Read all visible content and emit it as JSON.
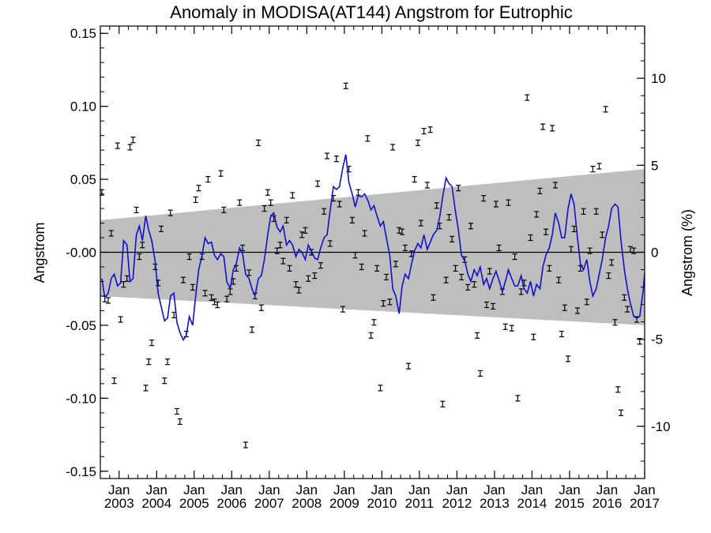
{
  "chart_data": {
    "type": "line",
    "title": "Anomaly in MODISA(AT144) Angstrom for Eutrophic",
    "ylabel": "Angstrom",
    "y2label": "Angstrom (%)",
    "xlim": [
      2002.5,
      2017.0
    ],
    "ylim": [
      -0.155,
      0.155
    ],
    "y2lim": [
      -13.0,
      13.0
    ],
    "yticks": [
      {
        "value": 0.15,
        "label": "0.15"
      },
      {
        "value": 0.1,
        "label": "0.10"
      },
      {
        "value": 0.05,
        "label": "0.05"
      },
      {
        "value": 0.0,
        "label": "-0.00"
      },
      {
        "value": -0.05,
        "label": "-0.05"
      },
      {
        "value": -0.1,
        "label": "-0.10"
      },
      {
        "value": -0.15,
        "label": "-0.15"
      }
    ],
    "y2ticks": [
      {
        "value": 10,
        "label": "10"
      },
      {
        "value": 5,
        "label": "5"
      },
      {
        "value": 0,
        "label": "0"
      },
      {
        "value": -5,
        "label": "-5"
      },
      {
        "value": -10,
        "label": "-10"
      }
    ],
    "xticks": [
      {
        "value": 2003,
        "top": "Jan",
        "bottom": "2003"
      },
      {
        "value": 2004,
        "top": "Jan",
        "bottom": "2004"
      },
      {
        "value": 2005,
        "top": "Jan",
        "bottom": "2005"
      },
      {
        "value": 2006,
        "top": "Jan",
        "bottom": "2006"
      },
      {
        "value": 2007,
        "top": "Jan",
        "bottom": "2007"
      },
      {
        "value": 2008,
        "top": "Jan",
        "bottom": "2008"
      },
      {
        "value": 2009,
        "top": "Jan",
        "bottom": "2009"
      },
      {
        "value": 2010,
        "top": "Jan",
        "bottom": "2010"
      },
      {
        "value": 2011,
        "top": "Jan",
        "bottom": "2011"
      },
      {
        "value": 2012,
        "top": "Jan",
        "bottom": "2012"
      },
      {
        "value": 2013,
        "top": "Jan",
        "bottom": "2013"
      },
      {
        "value": 2014,
        "top": "Jan",
        "bottom": "2014"
      },
      {
        "value": 2015,
        "top": "Jan",
        "bottom": "2015"
      },
      {
        "value": 2016,
        "top": "Jan",
        "bottom": "2016"
      },
      {
        "value": 2017,
        "top": "Jan",
        "bottom": "2017"
      }
    ],
    "band": {
      "start": [
        2002.5,
        0.022,
        -0.03
      ],
      "end": [
        2017.0,
        0.057,
        -0.05
      ],
      "color": "#bebebe"
    },
    "zero_line": 0.0,
    "smoothed_color": "#1010d0",
    "smoothed": [
      [
        2002.54,
        -0.018
      ],
      [
        2002.62,
        -0.031
      ],
      [
        2002.71,
        -0.028
      ],
      [
        2002.79,
        -0.018
      ],
      [
        2002.87,
        -0.015
      ],
      [
        2002.96,
        -0.023
      ],
      [
        2003.04,
        -0.021
      ],
      [
        2003.12,
        0.008
      ],
      [
        2003.21,
        0.005
      ],
      [
        2003.29,
        -0.02
      ],
      [
        2003.37,
        -0.018
      ],
      [
        2003.46,
        0.012
      ],
      [
        2003.54,
        0.018
      ],
      [
        2003.62,
        0.008
      ],
      [
        2003.71,
        0.025
      ],
      [
        2003.79,
        0.015
      ],
      [
        2003.87,
        0.008
      ],
      [
        2003.96,
        -0.006
      ],
      [
        2004.04,
        -0.028
      ],
      [
        2004.12,
        -0.037
      ],
      [
        2004.21,
        -0.047
      ],
      [
        2004.29,
        -0.045
      ],
      [
        2004.37,
        -0.03
      ],
      [
        2004.46,
        -0.028
      ],
      [
        2004.54,
        -0.048
      ],
      [
        2004.62,
        -0.055
      ],
      [
        2004.71,
        -0.06
      ],
      [
        2004.79,
        -0.057
      ],
      [
        2004.87,
        -0.044
      ],
      [
        2004.96,
        -0.05
      ],
      [
        2005.04,
        -0.03
      ],
      [
        2005.12,
        -0.012
      ],
      [
        2005.21,
        -0.002
      ],
      [
        2005.29,
        0.01
      ],
      [
        2005.37,
        0.006
      ],
      [
        2005.46,
        0.007
      ],
      [
        2005.54,
        -0.002
      ],
      [
        2005.62,
        -0.005
      ],
      [
        2005.71,
        -0.001
      ],
      [
        2005.79,
        -0.003
      ],
      [
        2005.87,
        -0.02
      ],
      [
        2005.96,
        -0.025
      ],
      [
        2006.04,
        -0.012
      ],
      [
        2006.12,
        -0.008
      ],
      [
        2006.21,
        0.003
      ],
      [
        2006.29,
        -0.001
      ],
      [
        2006.37,
        -0.015
      ],
      [
        2006.46,
        -0.018
      ],
      [
        2006.54,
        -0.025
      ],
      [
        2006.62,
        -0.03
      ],
      [
        2006.71,
        -0.018
      ],
      [
        2006.79,
        -0.016
      ],
      [
        2006.87,
        -0.005
      ],
      [
        2006.96,
        0.012
      ],
      [
        2007.04,
        0.025
      ],
      [
        2007.12,
        0.027
      ],
      [
        2007.21,
        0.017
      ],
      [
        2007.29,
        0.014
      ],
      [
        2007.37,
        0.018
      ],
      [
        2007.46,
        0.005
      ],
      [
        2007.54,
        0.008
      ],
      [
        2007.62,
        0.005
      ],
      [
        2007.71,
        -0.003
      ],
      [
        2007.79,
        0.002
      ],
      [
        2007.87,
        0.0
      ],
      [
        2007.96,
        -0.005
      ],
      [
        2008.04,
        0.005
      ],
      [
        2008.12,
        0.001
      ],
      [
        2008.21,
        -0.004
      ],
      [
        2008.29,
        -0.005
      ],
      [
        2008.37,
        0.003
      ],
      [
        2008.46,
        0.01
      ],
      [
        2008.54,
        0.012
      ],
      [
        2008.62,
        0.028
      ],
      [
        2008.71,
        0.045
      ],
      [
        2008.79,
        0.043
      ],
      [
        2008.87,
        0.045
      ],
      [
        2008.96,
        0.058
      ],
      [
        2009.04,
        0.067
      ],
      [
        2009.12,
        0.048
      ],
      [
        2009.21,
        0.04
      ],
      [
        2009.29,
        0.031
      ],
      [
        2009.37,
        0.039
      ],
      [
        2009.46,
        0.038
      ],
      [
        2009.54,
        0.04
      ],
      [
        2009.62,
        0.036
      ],
      [
        2009.71,
        0.029
      ],
      [
        2009.79,
        0.032
      ],
      [
        2009.87,
        0.025
      ],
      [
        2009.96,
        0.018
      ],
      [
        2010.04,
        0.021
      ],
      [
        2010.12,
        0.01
      ],
      [
        2010.21,
        -0.002
      ],
      [
        2010.29,
        -0.025
      ],
      [
        2010.37,
        -0.03
      ],
      [
        2010.46,
        -0.042
      ],
      [
        2010.54,
        -0.023
      ],
      [
        2010.62,
        -0.015
      ],
      [
        2010.71,
        -0.018
      ],
      [
        2010.79,
        -0.008
      ],
      [
        2010.87,
        0.001
      ],
      [
        2010.96,
        0.006
      ],
      [
        2011.04,
        0.003
      ],
      [
        2011.12,
        0.012
      ],
      [
        2011.21,
        0.002
      ],
      [
        2011.29,
        0.007
      ],
      [
        2011.37,
        0.012
      ],
      [
        2011.46,
        0.015
      ],
      [
        2011.54,
        0.024
      ],
      [
        2011.62,
        0.038
      ],
      [
        2011.71,
        0.051
      ],
      [
        2011.79,
        0.047
      ],
      [
        2011.87,
        0.045
      ],
      [
        2011.96,
        0.028
      ],
      [
        2012.04,
        0.015
      ],
      [
        2012.12,
        -0.002
      ],
      [
        2012.21,
        -0.006
      ],
      [
        2012.29,
        -0.015
      ],
      [
        2012.37,
        -0.02
      ],
      [
        2012.46,
        -0.012
      ],
      [
        2012.54,
        -0.016
      ],
      [
        2012.62,
        -0.01
      ],
      [
        2012.71,
        -0.022
      ],
      [
        2012.79,
        -0.018
      ],
      [
        2012.87,
        -0.025
      ],
      [
        2012.96,
        -0.018
      ],
      [
        2013.04,
        -0.013
      ],
      [
        2013.12,
        -0.019
      ],
      [
        2013.21,
        -0.027
      ],
      [
        2013.29,
        -0.02
      ],
      [
        2013.37,
        -0.012
      ],
      [
        2013.46,
        -0.018
      ],
      [
        2013.54,
        -0.023
      ],
      [
        2013.62,
        -0.023
      ],
      [
        2013.71,
        -0.016
      ],
      [
        2013.79,
        -0.025
      ],
      [
        2013.87,
        -0.028
      ],
      [
        2013.96,
        -0.02
      ],
      [
        2014.04,
        -0.03
      ],
      [
        2014.12,
        -0.022
      ],
      [
        2014.21,
        -0.025
      ],
      [
        2014.29,
        -0.01
      ],
      [
        2014.37,
        -0.002
      ],
      [
        2014.46,
        0.003
      ],
      [
        2014.54,
        0.012
      ],
      [
        2014.62,
        0.027
      ],
      [
        2014.71,
        0.02
      ],
      [
        2014.79,
        0.01
      ],
      [
        2014.87,
        0.01
      ],
      [
        2014.96,
        0.03
      ],
      [
        2015.04,
        0.04
      ],
      [
        2015.12,
        0.033
      ],
      [
        2015.21,
        0.01
      ],
      [
        2015.29,
        -0.008
      ],
      [
        2015.37,
        -0.012
      ],
      [
        2015.46,
        -0.005
      ],
      [
        2015.54,
        -0.02
      ],
      [
        2015.62,
        -0.03
      ],
      [
        2015.71,
        -0.025
      ],
      [
        2015.79,
        -0.015
      ],
      [
        2015.87,
        -0.005
      ],
      [
        2015.96,
        0.01
      ],
      [
        2016.04,
        0.018
      ],
      [
        2016.12,
        0.03
      ],
      [
        2016.21,
        0.033
      ],
      [
        2016.29,
        0.031
      ],
      [
        2016.37,
        0.008
      ],
      [
        2016.46,
        -0.012
      ],
      [
        2016.54,
        -0.025
      ],
      [
        2016.62,
        -0.035
      ],
      [
        2016.71,
        -0.044
      ],
      [
        2016.79,
        -0.045
      ],
      [
        2016.87,
        -0.044
      ],
      [
        2016.96,
        -0.026
      ],
      [
        2017.0,
        -0.015
      ]
    ],
    "monthly_points": [
      [
        2002.54,
        0.041
      ],
      [
        2002.62,
        -0.032
      ],
      [
        2002.71,
        -0.033
      ],
      [
        2002.79,
        0.013
      ],
      [
        2002.87,
        -0.088
      ],
      [
        2002.96,
        0.073
      ],
      [
        2003.04,
        -0.046
      ],
      [
        2003.12,
        -0.022
      ],
      [
        2003.21,
        -0.018
      ],
      [
        2003.29,
        0.072
      ],
      [
        2003.37,
        0.077
      ],
      [
        2003.46,
        0.029
      ],
      [
        2003.54,
        -0.003
      ],
      [
        2003.62,
        0.005
      ],
      [
        2003.71,
        -0.093
      ],
      [
        2003.79,
        -0.075
      ],
      [
        2003.87,
        -0.062
      ],
      [
        2003.96,
        -0.01
      ],
      [
        2004.04,
        -0.021
      ],
      [
        2004.12,
        0.016
      ],
      [
        2004.21,
        -0.088
      ],
      [
        2004.29,
        -0.075
      ],
      [
        2004.37,
        0.027
      ],
      [
        2004.46,
        -0.043
      ],
      [
        2004.54,
        -0.109
      ],
      [
        2004.62,
        -0.116
      ],
      [
        2004.71,
        -0.019
      ],
      [
        2004.79,
        -0.056
      ],
      [
        2004.87,
        -0.003
      ],
      [
        2004.96,
        -0.024
      ],
      [
        2005.04,
        0.036
      ],
      [
        2005.12,
        0.044
      ],
      [
        2005.21,
        -0.003
      ],
      [
        2005.29,
        -0.028
      ],
      [
        2005.37,
        0.05
      ],
      [
        2005.46,
        -0.031
      ],
      [
        2005.54,
        -0.034
      ],
      [
        2005.62,
        -0.036
      ],
      [
        2005.71,
        0.054
      ],
      [
        2005.79,
        0.029
      ],
      [
        2005.87,
        -0.032
      ],
      [
        2005.96,
        -0.027
      ],
      [
        2006.04,
        -0.02
      ],
      [
        2006.12,
        -0.011
      ],
      [
        2006.21,
        0.034
      ],
      [
        2006.29,
        0.003
      ],
      [
        2006.37,
        -0.132
      ],
      [
        2006.46,
        -0.014
      ],
      [
        2006.54,
        -0.053
      ],
      [
        2006.62,
        -0.03
      ],
      [
        2006.71,
        0.075
      ],
      [
        2006.79,
        -0.038
      ],
      [
        2006.87,
        0.03
      ],
      [
        2006.96,
        0.041
      ],
      [
        2007.04,
        0.034
      ],
      [
        2007.12,
        0.023
      ],
      [
        2007.21,
        0.001
      ],
      [
        2007.29,
        0.005
      ],
      [
        2007.37,
        -0.006
      ],
      [
        2007.46,
        0.022
      ],
      [
        2007.54,
        -0.011
      ],
      [
        2007.62,
        0.039
      ],
      [
        2007.71,
        -0.022
      ],
      [
        2007.79,
        -0.026
      ],
      [
        2007.87,
        0.012
      ],
      [
        2007.96,
        0.015
      ],
      [
        2008.04,
        -0.018
      ],
      [
        2008.12,
        0.0
      ],
      [
        2008.21,
        -0.016
      ],
      [
        2008.29,
        0.047
      ],
      [
        2008.37,
        -0.009
      ],
      [
        2008.46,
        0.028
      ],
      [
        2008.54,
        0.066
      ],
      [
        2008.62,
        0.006
      ],
      [
        2008.71,
        0.037
      ],
      [
        2008.79,
        0.064
      ],
      [
        2008.87,
        0.033
      ],
      [
        2008.96,
        -0.039
      ],
      [
        2009.04,
        0.114
      ],
      [
        2009.12,
        0.057
      ],
      [
        2009.21,
        0.022
      ],
      [
        2009.29,
        -0.002
      ],
      [
        2009.37,
        0.041
      ],
      [
        2009.46,
        -0.01
      ],
      [
        2009.54,
        0.013
      ],
      [
        2009.62,
        0.078
      ],
      [
        2009.71,
        -0.057
      ],
      [
        2009.79,
        -0.048
      ],
      [
        2009.87,
        -0.011
      ],
      [
        2009.96,
        -0.093
      ],
      [
        2010.04,
        -0.035
      ],
      [
        2010.12,
        -0.017
      ],
      [
        2010.21,
        -0.034
      ],
      [
        2010.29,
        0.072
      ],
      [
        2010.37,
        -0.008
      ],
      [
        2010.46,
        0.015
      ],
      [
        2010.54,
        0.014
      ],
      [
        2010.62,
        0.003
      ],
      [
        2010.71,
        -0.078
      ],
      [
        2010.79,
        -0.001
      ],
      [
        2010.87,
        0.05
      ],
      [
        2010.96,
        0.075
      ],
      [
        2011.04,
        0.02
      ],
      [
        2011.12,
        0.083
      ],
      [
        2011.21,
        0.046
      ],
      [
        2011.29,
        0.084
      ],
      [
        2011.37,
        -0.031
      ],
      [
        2011.46,
        0.032
      ],
      [
        2011.54,
        0.018
      ],
      [
        2011.62,
        -0.104
      ],
      [
        2011.71,
        -0.019
      ],
      [
        2011.79,
        0.024
      ],
      [
        2011.87,
        0.009
      ],
      [
        2011.96,
        -0.011
      ],
      [
        2012.04,
        0.044
      ],
      [
        2012.12,
        -0.017
      ],
      [
        2012.21,
        -0.005
      ],
      [
        2012.29,
        -0.024
      ],
      [
        2012.37,
        0.018
      ],
      [
        2012.46,
        -0.022
      ],
      [
        2012.54,
        -0.057
      ],
      [
        2012.62,
        -0.083
      ],
      [
        2012.71,
        0.037
      ],
      [
        2012.79,
        -0.036
      ],
      [
        2012.87,
        -0.013
      ],
      [
        2012.96,
        -0.037
      ],
      [
        2013.04,
        0.033
      ],
      [
        2013.12,
        0.003
      ],
      [
        2013.21,
        -0.027
      ],
      [
        2013.29,
        -0.051
      ],
      [
        2013.37,
        0.034
      ],
      [
        2013.46,
        -0.052
      ],
      [
        2013.54,
        -0.003
      ],
      [
        2013.62,
        -0.1
      ],
      [
        2013.71,
        -0.027
      ],
      [
        2013.79,
        -0.021
      ],
      [
        2013.87,
        0.106
      ],
      [
        2013.96,
        0.01
      ],
      [
        2014.04,
        -0.058
      ],
      [
        2014.12,
        0.026
      ],
      [
        2014.21,
        0.042
      ],
      [
        2014.29,
        0.086
      ],
      [
        2014.37,
        0.014
      ],
      [
        2014.46,
        -0.011
      ],
      [
        2014.54,
        0.085
      ],
      [
        2014.62,
        0.046
      ],
      [
        2014.71,
        -0.019
      ],
      [
        2014.79,
        -0.056
      ],
      [
        2014.87,
        -0.038
      ],
      [
        2014.96,
        -0.073
      ],
      [
        2015.04,
        0.002
      ],
      [
        2015.12,
        0.016
      ],
      [
        2015.21,
        -0.04
      ],
      [
        2015.29,
        -0.011
      ],
      [
        2015.37,
        0.028
      ],
      [
        2015.46,
        -0.034
      ],
      [
        2015.54,
        0.001
      ],
      [
        2015.62,
        0.057
      ],
      [
        2015.71,
        0.028
      ],
      [
        2015.79,
        0.059
      ],
      [
        2015.87,
        0.012
      ],
      [
        2015.96,
        0.098
      ],
      [
        2016.04,
        -0.016
      ],
      [
        2016.12,
        -0.007
      ],
      [
        2016.21,
        -0.048
      ],
      [
        2016.29,
        -0.094
      ],
      [
        2016.37,
        -0.11
      ],
      [
        2016.46,
        -0.031
      ],
      [
        2016.54,
        -0.039
      ],
      [
        2016.62,
        0.002
      ],
      [
        2016.71,
        0.001
      ],
      [
        2016.79,
        -0.046
      ],
      [
        2016.87,
        -0.061
      ]
    ]
  }
}
